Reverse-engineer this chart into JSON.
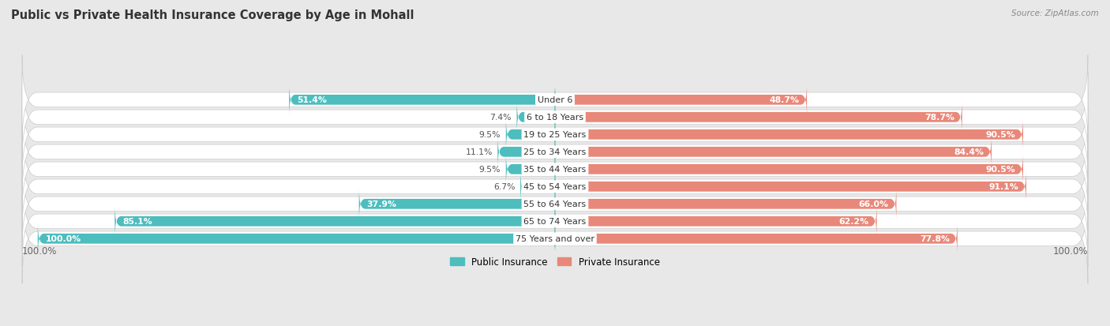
{
  "title": "Public vs Private Health Insurance Coverage by Age in Mohall",
  "source": "Source: ZipAtlas.com",
  "categories": [
    "Under 6",
    "6 to 18 Years",
    "19 to 25 Years",
    "25 to 34 Years",
    "35 to 44 Years",
    "45 to 54 Years",
    "55 to 64 Years",
    "65 to 74 Years",
    "75 Years and over"
  ],
  "public_values": [
    51.4,
    7.4,
    9.5,
    11.1,
    9.5,
    6.7,
    37.9,
    85.1,
    100.0
  ],
  "private_values": [
    48.7,
    78.7,
    90.5,
    84.4,
    90.5,
    91.1,
    66.0,
    62.2,
    77.8
  ],
  "public_color": "#4dbdbe",
  "private_color": "#e8887a",
  "private_color_light": "#f0a898",
  "bg_color": "#e8e8e8",
  "row_color": "#ffffff",
  "title_fontsize": 10.5,
  "bar_height": 0.58,
  "max_val": 100.0,
  "label_threshold": 15.0
}
